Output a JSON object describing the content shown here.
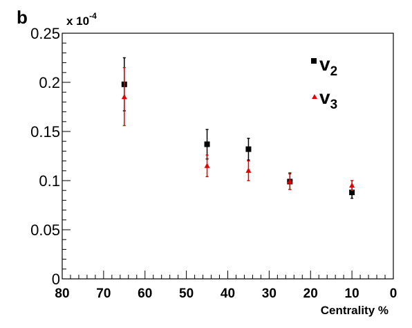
{
  "chart_data": {
    "type": "scatter",
    "panel_label": "b",
    "multiplier_label": "x 10",
    "multiplier_exp": "-4",
    "xlabel": "Centrality %",
    "ylabel": "",
    "x_reversed": true,
    "xlim": [
      0,
      80
    ],
    "ylim": [
      0,
      0.25
    ],
    "xticks": [
      80,
      70,
      60,
      50,
      40,
      30,
      20,
      10,
      0
    ],
    "xtick_labels": [
      "80",
      "70",
      "60",
      "50",
      "40",
      "30",
      "20",
      "10",
      "0"
    ],
    "yticks": [
      0,
      0.05,
      0.1,
      0.15,
      0.2,
      0.25
    ],
    "ytick_labels": [
      "0",
      "0.05",
      "0.1",
      "0.15",
      "0.2",
      "0.25"
    ],
    "grid": false,
    "legend_position": "top-right",
    "series": [
      {
        "name": "v",
        "subscript": "2",
        "marker": "square",
        "color": "#000000",
        "x": [
          65,
          45,
          35,
          25,
          10
        ],
        "y": [
          0.198,
          0.137,
          0.132,
          0.099,
          0.088
        ],
        "err_low": [
          0.027,
          0.015,
          0.011,
          0.008,
          0.006
        ],
        "err_high": [
          0.027,
          0.015,
          0.011,
          0.008,
          0.006
        ]
      },
      {
        "name": "v",
        "subscript": "3",
        "marker": "triangle",
        "color": "#e00000",
        "x": [
          65,
          45,
          35,
          25,
          10
        ],
        "y": [
          0.185,
          0.115,
          0.11,
          0.099,
          0.095
        ],
        "err_low": [
          0.029,
          0.011,
          0.01,
          0.008,
          0.005
        ],
        "err_high": [
          0.03,
          0.011,
          0.01,
          0.009,
          0.005
        ]
      }
    ]
  }
}
